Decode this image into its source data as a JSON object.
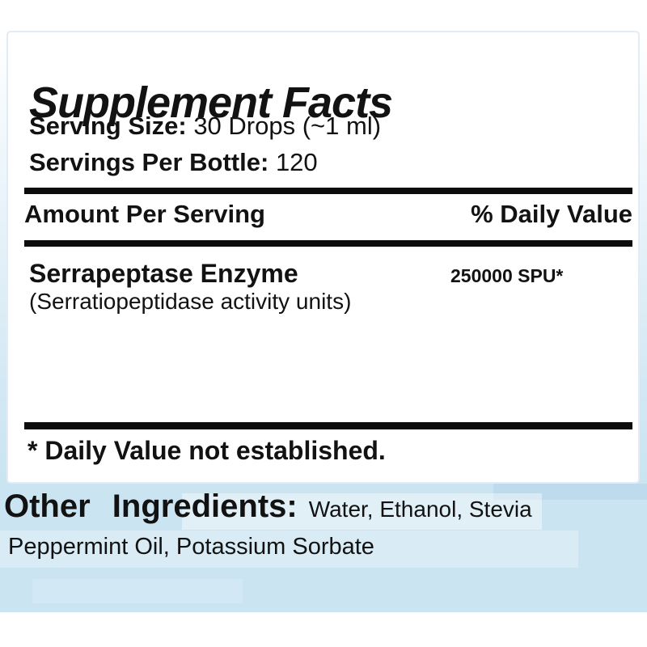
{
  "panel": {
    "title": "Supplement Facts",
    "serving_size_label": "Serving Size:",
    "serving_size_value": "30 Drops (~1 ml)",
    "servings_per_bottle_label": "Servings Per Bottle:",
    "servings_per_bottle_value": "120",
    "amount_header": "Amount Per Serving",
    "daily_value_header": "% Daily Value",
    "ingredient": {
      "name": "Serrapeptase Enzyme",
      "amount": "250000 SPU*",
      "description": "(Serratiopeptidase activity units)"
    },
    "footnote": "* Daily Value not established."
  },
  "other_ingredients": {
    "label": "Other Ingredients:",
    "line1": "Water, Ethanol, Stevia",
    "line2": "Peppermint Oil, Potassium Sorbate"
  },
  "colors": {
    "text": "#121212",
    "bar": "#0c0c0c",
    "panel_bg": "#ffffff",
    "panel_border": "#e1edf6",
    "bottom_bg": "#cbe4f2"
  }
}
